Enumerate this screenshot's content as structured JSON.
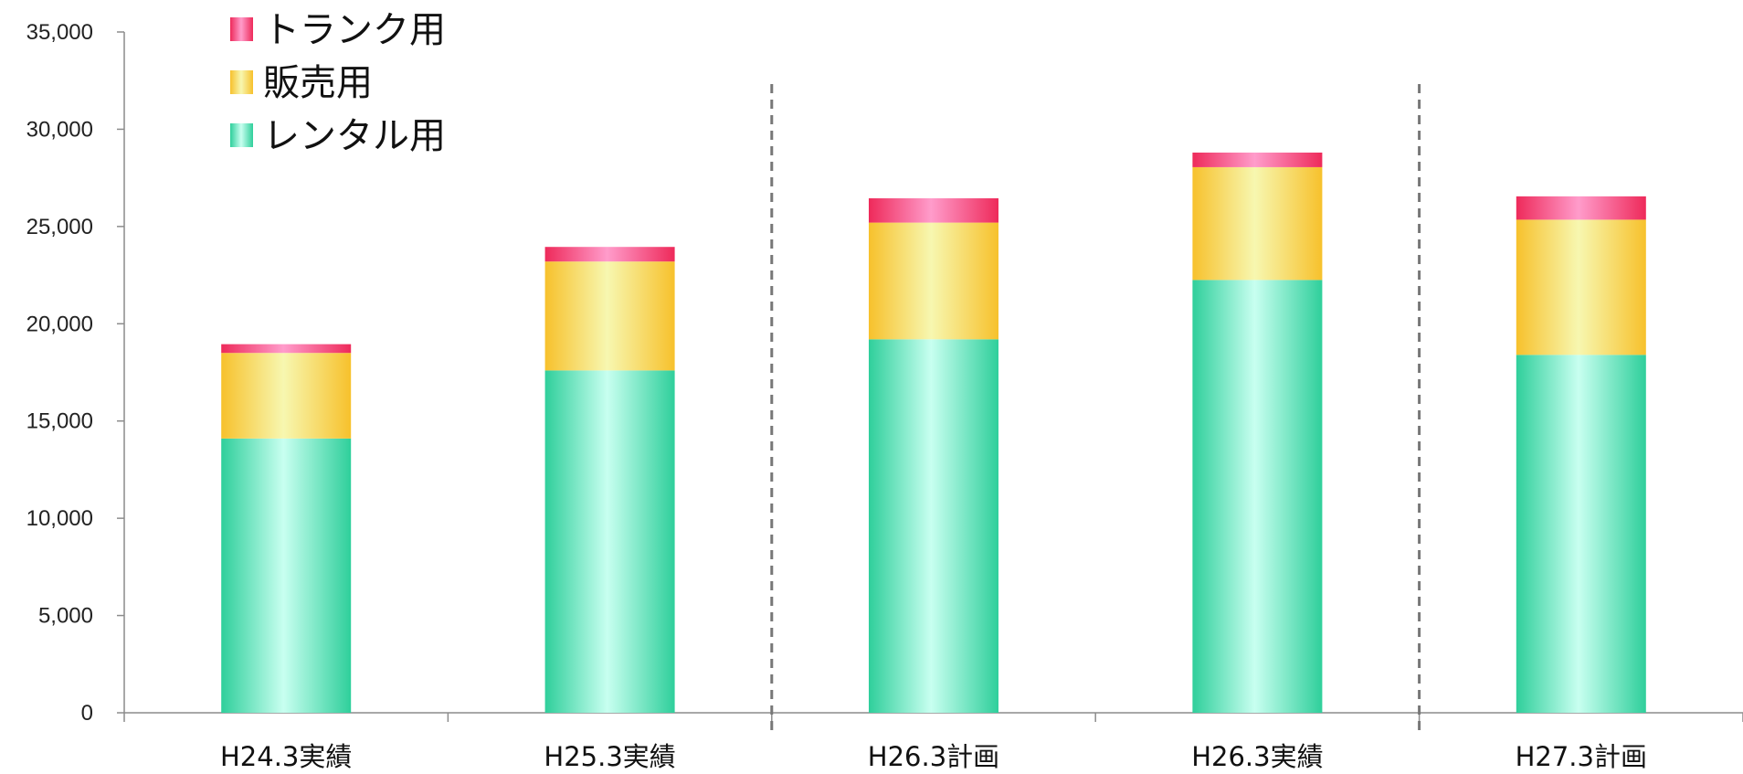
{
  "chart_data": {
    "type": "bar",
    "stacked": true,
    "categories": [
      "H24.3実績",
      "H25.3実績",
      "H26.3計画",
      "H26.3実績",
      "H27.3計画"
    ],
    "series": [
      {
        "name": "レンタル用",
        "values": [
          14100,
          17600,
          19200,
          22250,
          18400
        ],
        "color": "#2fcf9b"
      },
      {
        "name": "販売用",
        "values": [
          4400,
          5600,
          6000,
          5800,
          6950
        ],
        "color": "#f7c12c"
      },
      {
        "name": "トランク用",
        "values": [
          450,
          750,
          1250,
          750,
          1200
        ],
        "color": "#ee2a5a"
      }
    ],
    "yticks": [
      "0",
      "5,000",
      "10,000",
      "15,000",
      "20,000",
      "25,000",
      "30,000",
      "35,000"
    ],
    "ylim": [
      0,
      35000
    ],
    "grid": false,
    "legend_position": "top-left",
    "dividers_after_category": [
      1,
      3
    ]
  }
}
